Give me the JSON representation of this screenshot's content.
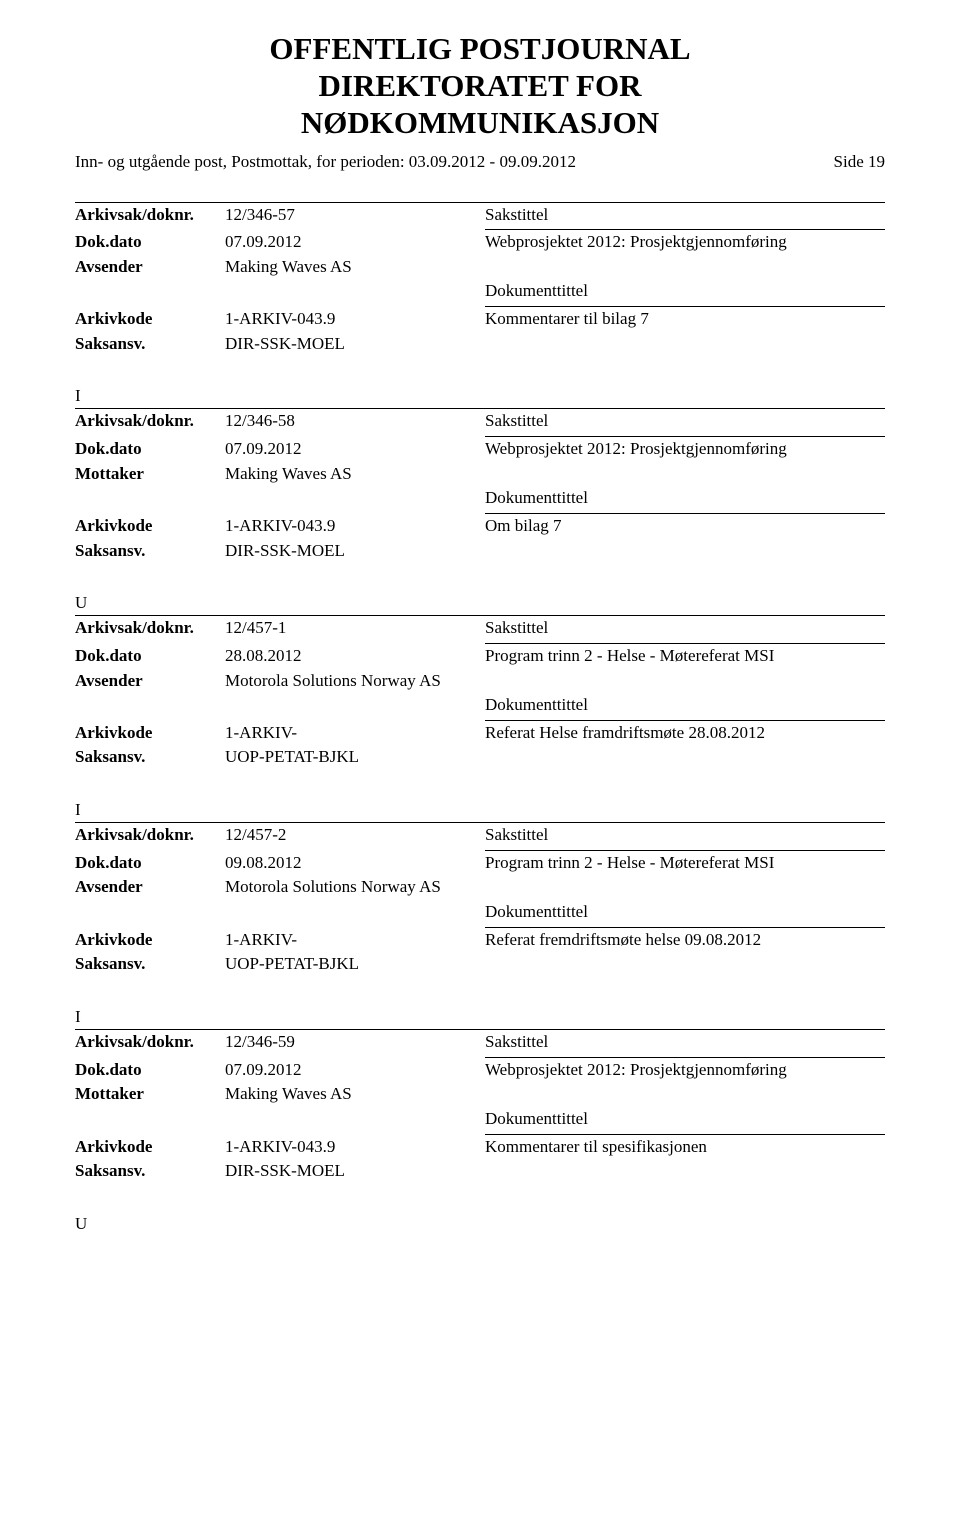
{
  "colors": {
    "text": "#000000",
    "background": "#ffffff",
    "border": "#000000"
  },
  "typography": {
    "title_fontsize": 31,
    "body_fontsize": 17,
    "title_font": "Times New Roman",
    "body_font": "Book Antiqua"
  },
  "header": {
    "line1": "OFFENTLIG POSTJOURNAL",
    "line2": "DIREKTORATET FOR",
    "line3": "NØDKOMMUNIKASJON"
  },
  "subheader": {
    "left": "Inn- og utgående post, Postmottak, for perioden: 03.09.2012 - 09.09.2012",
    "right": "Side 19"
  },
  "labels": {
    "arkivsak": "Arkivsak/doknr.",
    "dokdato": "Dok.dato",
    "avsender": "Avsender",
    "mottaker": "Mottaker",
    "arkivkode": "Arkivkode",
    "saksansv": "Saksansv.",
    "sakstittel": "Sakstittel",
    "dokumenttittel": "Dokumenttittel"
  },
  "entries": [
    {
      "type_prefix": "",
      "arkivsak": "12/346-57",
      "dokdato": "07.09.2012",
      "party_label": "Avsender",
      "party": "Making Waves AS",
      "arkivkode": "1-ARKIV-043.9",
      "saksansv": "DIR-SSK-MOEL",
      "sakstittel_value": "Webprosjektet 2012: Prosjektgjennomføring",
      "dokumenttittel_value": "Kommentarer til bilag 7"
    },
    {
      "type_prefix": "I",
      "arkivsak": "12/346-58",
      "dokdato": "07.09.2012",
      "party_label": "Mottaker",
      "party": "Making Waves AS",
      "arkivkode": "1-ARKIV-043.9",
      "saksansv": "DIR-SSK-MOEL",
      "sakstittel_value": "Webprosjektet 2012: Prosjektgjennomføring",
      "dokumenttittel_value": "Om bilag 7"
    },
    {
      "type_prefix": "U",
      "arkivsak": "12/457-1",
      "dokdato": "28.08.2012",
      "party_label": "Avsender",
      "party": "Motorola Solutions Norway AS",
      "arkivkode": "1-ARKIV-",
      "saksansv": "UOP-PETAT-BJKL",
      "sakstittel_value": "Program trinn 2 - Helse - Møtereferat MSI",
      "dokumenttittel_value": "Referat Helse framdriftsmøte 28.08.2012"
    },
    {
      "type_prefix": "I",
      "arkivsak": "12/457-2",
      "dokdato": "09.08.2012",
      "party_label": "Avsender",
      "party": "Motorola Solutions Norway AS",
      "arkivkode": "1-ARKIV-",
      "saksansv": "UOP-PETAT-BJKL",
      "sakstittel_value": "Program trinn 2 - Helse - Møtereferat MSI",
      "dokumenttittel_value": "Referat fremdriftsmøte helse 09.08.2012"
    },
    {
      "type_prefix": "I",
      "arkivsak": "12/346-59",
      "dokdato": "07.09.2012",
      "party_label": "Mottaker",
      "party": "Making Waves AS",
      "arkivkode": "1-ARKIV-043.9",
      "saksansv": "DIR-SSK-MOEL",
      "sakstittel_value": "Webprosjektet 2012: Prosjektgjennomføring",
      "dokumenttittel_value": "Kommentarer til spesifikasjonen"
    }
  ],
  "final_type": "U"
}
